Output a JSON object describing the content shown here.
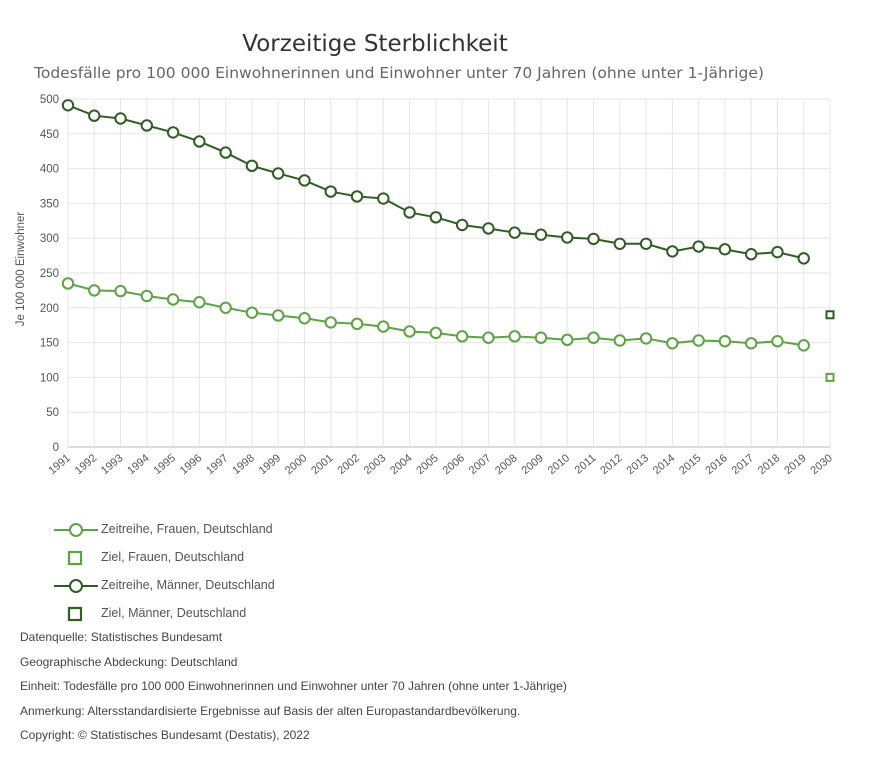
{
  "chart_data": {
    "type": "line",
    "title": "Vorzeitige Sterblichkeit",
    "subtitle": "Todesfälle pro 100 000 Einwohnerinnen und Einwohner unter 70 Jahren (ohne unter 1-Jährige)",
    "xlabel": "",
    "ylabel": "Je 100 000 Einwohner",
    "ylim": [
      0,
      500
    ],
    "yticks": [
      0,
      50,
      100,
      150,
      200,
      250,
      300,
      350,
      400,
      450,
      500
    ],
    "categories": [
      "1991",
      "1992",
      "1993",
      "1994",
      "1995",
      "1996",
      "1997",
      "1998",
      "1999",
      "2000",
      "2001",
      "2002",
      "2003",
      "2004",
      "2005",
      "2006",
      "2007",
      "2008",
      "2009",
      "2010",
      "2011",
      "2012",
      "2013",
      "2014",
      "2015",
      "2016",
      "2017",
      "2018",
      "2019",
      "2030"
    ],
    "series": [
      {
        "name": "Zeitreihe, Frauen, Deutschland",
        "kind": "line",
        "color": "#5aa442",
        "values": [
          235,
          225,
          224,
          217,
          212,
          208,
          200,
          193,
          189,
          185,
          179,
          177,
          173,
          166,
          164,
          159,
          157,
          159,
          157,
          154,
          157,
          153,
          156,
          149,
          153,
          152,
          149,
          152,
          146,
          null
        ]
      },
      {
        "name": "Ziel, Frauen, Deutschland",
        "kind": "target",
        "color": "#5aa442",
        "values": [
          null,
          null,
          null,
          null,
          null,
          null,
          null,
          null,
          null,
          null,
          null,
          null,
          null,
          null,
          null,
          null,
          null,
          null,
          null,
          null,
          null,
          null,
          null,
          null,
          null,
          null,
          null,
          null,
          null,
          100
        ]
      },
      {
        "name": "Zeitreihe, Männer, Deutschland",
        "kind": "line",
        "color": "#2f5e22",
        "values": [
          491,
          476,
          472,
          462,
          452,
          439,
          423,
          404,
          393,
          383,
          367,
          360,
          357,
          337,
          330,
          319,
          314,
          308,
          305,
          301,
          299,
          292,
          292,
          281,
          288,
          284,
          277,
          280,
          271,
          null
        ]
      },
      {
        "name": "Ziel, Männer, Deutschland",
        "kind": "target",
        "color": "#2f5e22",
        "values": [
          null,
          null,
          null,
          null,
          null,
          null,
          null,
          null,
          null,
          null,
          null,
          null,
          null,
          null,
          null,
          null,
          null,
          null,
          null,
          null,
          null,
          null,
          null,
          null,
          null,
          null,
          null,
          null,
          null,
          190
        ]
      }
    ],
    "grid": true,
    "legend_position": "bottom-left"
  },
  "footer": {
    "source": "Datenquelle: Statistisches Bundesamt",
    "coverage": "Geographische Abdeckung: Deutschland",
    "unit": "Einheit: Todesfälle pro 100 000 Einwohnerinnen und Einwohner unter 70 Jahren (ohne unter 1-Jährige)",
    "note": "Anmerkung: Altersstandardisierte Ergebnisse auf Basis der alten Europastandardbevölkerung.",
    "copyright": "Copyright: © Statistisches Bundesamt (Destatis), 2022"
  }
}
